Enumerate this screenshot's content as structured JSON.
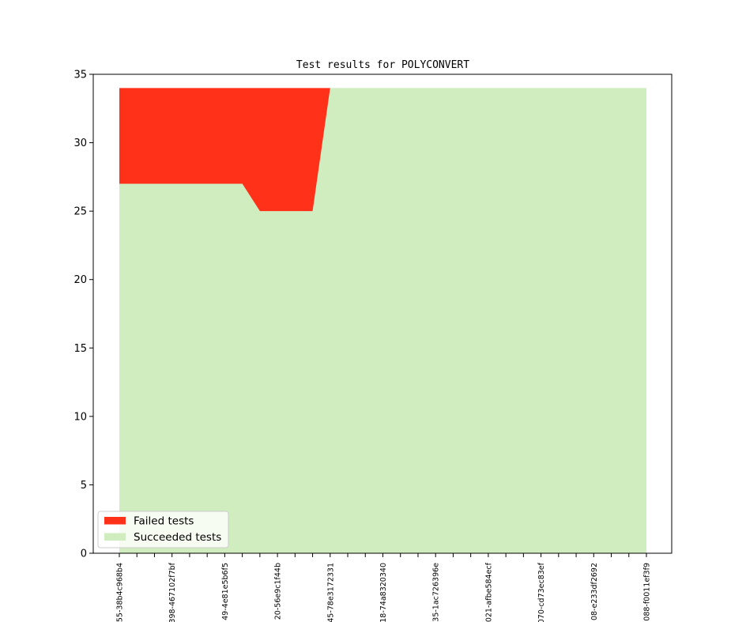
{
  "chart_data": {
    "type": "area",
    "stacked": true,
    "title": "Test results for POLYCONVERT",
    "xlabel": "",
    "ylabel": "",
    "ylim": [
      0,
      35
    ],
    "yticks": [
      0,
      5,
      10,
      15,
      20,
      25,
      30,
      35
    ],
    "grid": false,
    "legend_position": "lower-left",
    "x_tick_labels": [
      "55-38b4c968b4",
      "398-467102f7bf",
      "49-4e81e5b6f5",
      "20-56e9c1f44b",
      "45-78e3172331",
      "18-74a8320340",
      "35-1ac726396e",
      "021-afbe584ecf",
      "070-cd73ec83ef",
      "08-e233df2692",
      "088-f0011ef3f9"
    ],
    "x_minor_ticks_between": 1,
    "series": [
      {
        "name": "Succeeded tests",
        "color": "#cfedbf",
        "values": [
          27,
          27,
          27,
          27,
          27,
          27,
          27,
          27,
          25,
          25,
          25,
          25,
          34,
          34,
          34,
          34,
          34,
          34,
          34,
          34,
          34,
          34,
          34,
          34,
          34,
          34,
          34,
          34,
          34,
          34,
          34
        ]
      },
      {
        "name": "Failed tests",
        "color": "#ff3219",
        "values": [
          7,
          7,
          7,
          7,
          7,
          7,
          7,
          7,
          9,
          9,
          9,
          9,
          0,
          0,
          0,
          0,
          0,
          0,
          0,
          0,
          0,
          0,
          0,
          0,
          0,
          0,
          0,
          0,
          0,
          0,
          0
        ]
      }
    ]
  }
}
